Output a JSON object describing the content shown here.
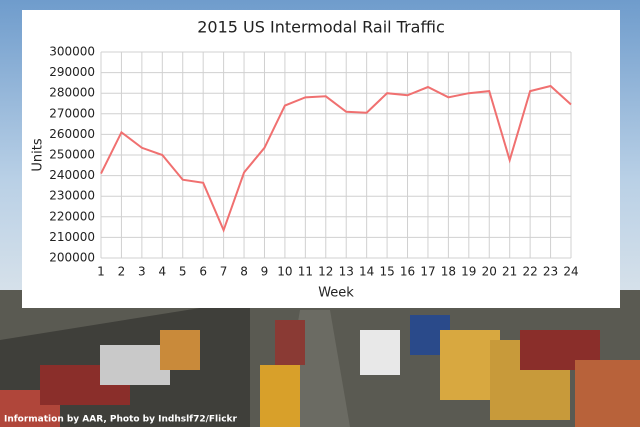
{
  "chart_data": {
    "type": "line",
    "title": "2015 US Intermodal Rail Traffic",
    "x_label": "Week",
    "y_label": "Units",
    "x": [
      1,
      2,
      3,
      4,
      5,
      6,
      7,
      8,
      9,
      10,
      11,
      12,
      13,
      14,
      15,
      16,
      17,
      18,
      19,
      20,
      21,
      22,
      23,
      24
    ],
    "series": [
      {
        "name": "Units",
        "color": "#f07070",
        "values": [
          241000,
          261000,
          253500,
          250000,
          238000,
          236500,
          213500,
          241500,
          253500,
          274000,
          278000,
          278500,
          271000,
          270500,
          280000,
          279000,
          283000,
          278000,
          280000,
          281000,
          247500,
          281000,
          283500,
          274500
        ]
      }
    ],
    "xlim": [
      1,
      24
    ],
    "xticks": [
      1,
      2,
      3,
      4,
      5,
      6,
      7,
      8,
      9,
      10,
      11,
      12,
      13,
      14,
      15,
      16,
      17,
      18,
      19,
      20,
      21,
      22,
      23,
      24
    ],
    "ylim": [
      200000,
      300000
    ],
    "yticks": [
      200000,
      210000,
      220000,
      230000,
      240000,
      250000,
      260000,
      270000,
      280000,
      290000,
      300000
    ],
    "grid": true
  },
  "credit": "Information by AAR, Photo by Indhslf72/Flickr"
}
